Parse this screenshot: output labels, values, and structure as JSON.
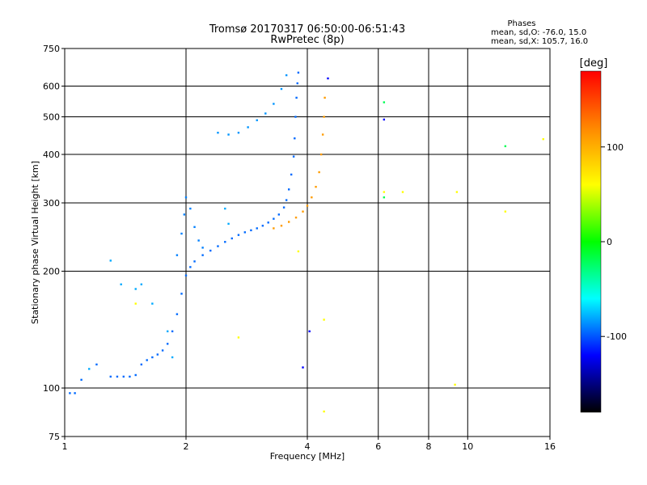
{
  "chart_data": {
    "type": "scatter",
    "title": "Tromsø 20170317 06:50:00-06:51:43",
    "subtitle": "RwPretec (8p)",
    "xlabel": "Frequency [MHz]",
    "ylabel": "Stationary phase Virtual Height [km]",
    "x_scale": "log",
    "y_scale": "log",
    "xlim": [
      1,
      16
    ],
    "ylim": [
      75,
      750
    ],
    "x_ticks": [
      1,
      2,
      4,
      6,
      8,
      10,
      16
    ],
    "y_ticks": [
      75,
      100,
      200,
      300,
      400,
      500,
      600,
      750
    ],
    "grid": true,
    "stats": {
      "heading": "Phases",
      "line_o": "mean, sd,O: -76.0, 15.0",
      "line_x": "mean, sd,X: 105.7, 16.0"
    },
    "colorbar": {
      "label": "[deg]",
      "range": [
        -180,
        180
      ],
      "ticks": [
        100,
        0,
        -100
      ],
      "colors": [
        "#ff0000",
        "#ff8800",
        "#ffff00",
        "#00ff00",
        "#00ffff",
        "#0000ff",
        "#000000"
      ]
    },
    "traces": [
      {
        "name": "",
        "phase": -95,
        "points": [
          [
            1.03,
            97
          ],
          [
            1.06,
            97
          ],
          [
            1.1,
            105
          ],
          [
            1.2,
            115
          ],
          [
            1.3,
            107
          ],
          [
            1.35,
            107
          ],
          [
            1.4,
            107
          ],
          [
            1.45,
            107
          ],
          [
            1.5,
            108
          ],
          [
            1.55,
            115
          ],
          [
            1.6,
            118
          ],
          [
            1.65,
            120
          ],
          [
            1.7,
            122
          ],
          [
            1.75,
            125
          ],
          [
            1.8,
            130
          ],
          [
            1.85,
            140
          ],
          [
            1.9,
            155
          ],
          [
            1.95,
            175
          ],
          [
            2.0,
            195
          ],
          [
            2.05,
            205
          ],
          [
            2.1,
            212
          ],
          [
            2.2,
            220
          ],
          [
            2.3,
            226
          ],
          [
            2.4,
            232
          ],
          [
            2.5,
            238
          ],
          [
            2.6,
            243
          ],
          [
            2.7,
            248
          ],
          [
            2.8,
            252
          ],
          [
            2.9,
            255
          ],
          [
            3.0,
            258
          ],
          [
            3.1,
            262
          ],
          [
            3.2,
            267
          ],
          [
            3.3,
            273
          ],
          [
            3.4,
            280
          ],
          [
            3.5,
            292
          ],
          [
            3.55,
            305
          ],
          [
            3.6,
            325
          ],
          [
            3.65,
            355
          ],
          [
            3.7,
            395
          ],
          [
            3.72,
            440
          ],
          [
            3.74,
            500
          ],
          [
            3.76,
            560
          ],
          [
            3.78,
            610
          ],
          [
            3.8,
            650
          ]
        ]
      },
      {
        "name": "",
        "phase": -90,
        "points": [
          [
            1.9,
            220
          ],
          [
            1.95,
            250
          ],
          [
            1.98,
            280
          ],
          [
            2.0,
            310
          ],
          [
            2.05,
            290
          ],
          [
            2.1,
            260
          ],
          [
            2.15,
            240
          ],
          [
            2.2,
            230
          ]
        ]
      },
      {
        "name": "",
        "phase": -85,
        "points": [
          [
            2.4,
            455
          ],
          [
            2.55,
            450
          ],
          [
            2.7,
            455
          ],
          [
            2.85,
            470
          ],
          [
            3.0,
            490
          ],
          [
            3.15,
            510
          ],
          [
            3.3,
            540
          ],
          [
            3.45,
            590
          ],
          [
            3.55,
            640
          ]
        ]
      },
      {
        "name": "",
        "phase": 110,
        "points": [
          [
            3.3,
            258
          ],
          [
            3.45,
            262
          ],
          [
            3.6,
            268
          ],
          [
            3.75,
            275
          ],
          [
            3.9,
            285
          ],
          [
            4.0,
            295
          ],
          [
            4.1,
            310
          ],
          [
            4.2,
            330
          ],
          [
            4.28,
            360
          ],
          [
            4.33,
            400
          ],
          [
            4.37,
            450
          ],
          [
            4.4,
            500
          ],
          [
            4.42,
            560
          ]
        ]
      },
      {
        "name": "",
        "phase": -80,
        "points": [
          [
            1.15,
            112
          ],
          [
            1.3,
            213
          ],
          [
            1.38,
            185
          ],
          [
            1.5,
            180
          ],
          [
            1.55,
            185
          ],
          [
            1.65,
            165
          ],
          [
            1.8,
            140
          ],
          [
            1.85,
            120
          ],
          [
            2.5,
            290
          ],
          [
            2.55,
            265
          ]
        ]
      },
      {
        "name": "",
        "phase": 60,
        "points": [
          [
            1.5,
            165
          ],
          [
            2.7,
            135
          ],
          [
            3.8,
            225
          ],
          [
            4.4,
            150
          ],
          [
            4.4,
            87
          ],
          [
            6.2,
            320
          ],
          [
            6.9,
            320
          ],
          [
            9.4,
            320
          ],
          [
            9.3,
            102
          ],
          [
            12.4,
            285
          ],
          [
            15.4,
            438
          ]
        ]
      },
      {
        "name": "",
        "phase": -20,
        "points": [
          [
            6.2,
            545
          ],
          [
            12.4,
            420
          ],
          [
            6.2,
            310
          ]
        ]
      },
      {
        "name": "",
        "phase": -120,
        "points": [
          [
            3.9,
            113
          ],
          [
            4.05,
            140
          ],
          [
            6.2,
            492
          ],
          [
            4.5,
            628
          ]
        ]
      }
    ]
  }
}
